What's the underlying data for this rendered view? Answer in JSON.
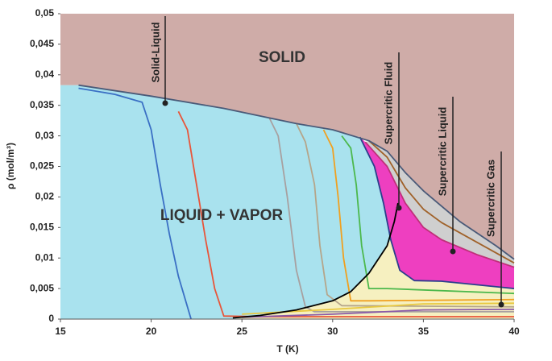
{
  "chart_data": {
    "type": "line",
    "xlabel": "T (K)",
    "ylabel": "ρ (mol/m³)",
    "xlim": [
      15,
      40
    ],
    "xticks": [
      15,
      20,
      25,
      30,
      35,
      40
    ],
    "ylim": [
      0,
      0.05
    ],
    "yticks": [
      0,
      {
        "value": 0.005,
        "label": "0,005"
      },
      {
        "value": 0.01,
        "label": "0,01"
      },
      {
        "value": 0.015,
        "label": "0,015"
      },
      {
        "value": 0.02,
        "label": "0,02"
      },
      {
        "value": 0.025,
        "label": "0,025"
      },
      {
        "value": 0.03,
        "label": "0,03"
      },
      {
        "value": 0.035,
        "label": "0,035"
      },
      {
        "value": 0.04,
        "label": "0,04"
      },
      {
        "value": 0.045,
        "label": "0,045"
      },
      {
        "value": 0.05,
        "label": "0,05"
      }
    ],
    "annotations": [
      "SOLID",
      "LIQUID + VAPOR",
      "Solid-Liquid",
      "Supercritic Fluid",
      "Supercritic Liquid",
      "Supercritic Gas"
    ],
    "regions": [
      {
        "color": "#cfaca8",
        "x": [
          15,
          40,
          40,
          39,
          38,
          37,
          36,
          35,
          34,
          33,
          32,
          30,
          28,
          24,
          20,
          16,
          15
        ],
        "values": [
          0.05,
          0.05,
          0.0098,
          0.012,
          0.014,
          0.016,
          0.0185,
          0.021,
          0.024,
          0.0275,
          0.0292,
          0.031,
          0.032,
          0.0345,
          0.0365,
          0.0383,
          0.0383
        ]
      },
      {
        "color": "#a9e2ee",
        "x": [
          15,
          15,
          16,
          20,
          24,
          28,
          30,
          31.5,
          32.3,
          32.8,
          33.2,
          33,
          32,
          31,
          30,
          28,
          26,
          24.5
        ],
        "values": [
          0,
          0.0383,
          0.0383,
          0.0365,
          0.0345,
          0.032,
          0.031,
          0.0298,
          0.025,
          0.019,
          0.013,
          0.012,
          0.0075,
          0.0045,
          0.003,
          0.0015,
          0.0006,
          0
        ]
      },
      {
        "color": "#f6f0c0",
        "x": [
          24.5,
          26,
          28,
          30,
          31,
          32,
          33,
          33.2,
          33.7,
          34.5,
          36,
          40,
          40
        ],
        "values": [
          0,
          0.0006,
          0.0015,
          0.003,
          0.0045,
          0.0075,
          0.012,
          0.013,
          0.008,
          0.0063,
          0.0062,
          0.005,
          0
        ]
      },
      {
        "color": "#ee3fc0",
        "x": [
          31.5,
          31.8,
          33,
          34,
          35,
          36,
          38,
          40,
          40,
          36,
          34.5,
          33.7,
          33.2,
          32.8,
          32.3
        ],
        "values": [
          0.0298,
          0.029,
          0.025,
          0.019,
          0.015,
          0.013,
          0.0105,
          0.0085,
          0.005,
          0.0062,
          0.0063,
          0.008,
          0.013,
          0.019,
          0.025
        ]
      },
      {
        "color": "#cfcfcf",
        "x": [
          31.8,
          32,
          33,
          34,
          35,
          36,
          37,
          38,
          39,
          40,
          40,
          38,
          36,
          35,
          34,
          33
        ],
        "values": [
          0.029,
          0.0292,
          0.0275,
          0.024,
          0.021,
          0.0185,
          0.016,
          0.014,
          0.012,
          0.0098,
          0.0085,
          0.0105,
          0.013,
          0.015,
          0.019,
          0.025
        ]
      }
    ],
    "series": [
      {
        "color": "#3a6fc4",
        "x": [
          16,
          18,
          19.5,
          20,
          20.5,
          21,
          21.5,
          22.2
        ],
        "values": [
          0.0378,
          0.0368,
          0.0355,
          0.031,
          0.022,
          0.014,
          0.007,
          0
        ]
      },
      {
        "color": "#e8553a",
        "x": [
          21.5,
          22,
          22.5,
          23,
          23.5,
          24,
          26,
          40
        ],
        "values": [
          0.034,
          0.031,
          0.022,
          0.013,
          0.005,
          0.0005,
          0.0004,
          0.0004
        ]
      },
      {
        "color": "#a8a0a0",
        "x": [
          26.5,
          27,
          27.5,
          28,
          28.5,
          29,
          40
        ],
        "values": [
          0.033,
          0.03,
          0.02,
          0.008,
          0.002,
          0.0012,
          0.0012
        ]
      },
      {
        "color": "#b5a58a",
        "x": [
          28,
          28.5,
          29,
          29.3,
          29.7,
          30.5,
          40
        ],
        "values": [
          0.032,
          0.029,
          0.022,
          0.012,
          0.004,
          0.0022,
          0.002
        ]
      },
      {
        "color": "#f0a020",
        "x": [
          29.5,
          30,
          30.3,
          30.6,
          31,
          32,
          40
        ],
        "values": [
          0.031,
          0.028,
          0.02,
          0.01,
          0.003,
          0.003,
          0.0032
        ]
      },
      {
        "color": "#4cb84c",
        "x": [
          30.5,
          31,
          31.3,
          31.6,
          32,
          33,
          40
        ],
        "values": [
          0.03,
          0.028,
          0.022,
          0.012,
          0.005,
          0.005,
          0.0042
        ]
      },
      {
        "color": "#2b3f8c",
        "x": [
          31.5,
          32.3,
          32.8,
          33.2,
          33.7,
          34.5,
          36,
          40
        ],
        "values": [
          0.0298,
          0.025,
          0.019,
          0.013,
          0.008,
          0.0063,
          0.0062,
          0.005
        ]
      },
      {
        "color": "#c0307a",
        "x": [
          31.8,
          33,
          34,
          35,
          36,
          38,
          40
        ],
        "values": [
          0.029,
          0.025,
          0.019,
          0.015,
          0.013,
          0.0105,
          0.0085
        ]
      },
      {
        "color": "#a0622a",
        "x": [
          32,
          33,
          34,
          35,
          36,
          38,
          40
        ],
        "values": [
          0.0292,
          0.0265,
          0.0215,
          0.018,
          0.0158,
          0.0125,
          0.0092
        ]
      },
      {
        "color": "#e8c840",
        "x": [
          25,
          30,
          35,
          40
        ],
        "values": [
          0.0008,
          0.0016,
          0.0025,
          0.0026
        ]
      },
      {
        "color": "#8a5aa8",
        "x": [
          25,
          30,
          35,
          40
        ],
        "values": [
          0.0003,
          0.0008,
          0.0015,
          0.0016
        ]
      },
      {
        "color": "#000000",
        "x": [
          24.5,
          26,
          28,
          30,
          31,
          32,
          33,
          33.4,
          33.6
        ],
        "values": [
          0.0002,
          0.0006,
          0.0015,
          0.003,
          0.0045,
          0.0075,
          0.012,
          0.016,
          0.019
        ]
      },
      {
        "color": "#4a5a78",
        "x": [
          16,
          20,
          24,
          28,
          30,
          32,
          33,
          34,
          35,
          36,
          37,
          38,
          39,
          40
        ],
        "values": [
          0.0383,
          0.0365,
          0.0345,
          0.032,
          0.031,
          0.0292,
          0.0275,
          0.024,
          0.021,
          0.0185,
          0.016,
          0.014,
          0.012,
          0.0098
        ]
      }
    ]
  }
}
